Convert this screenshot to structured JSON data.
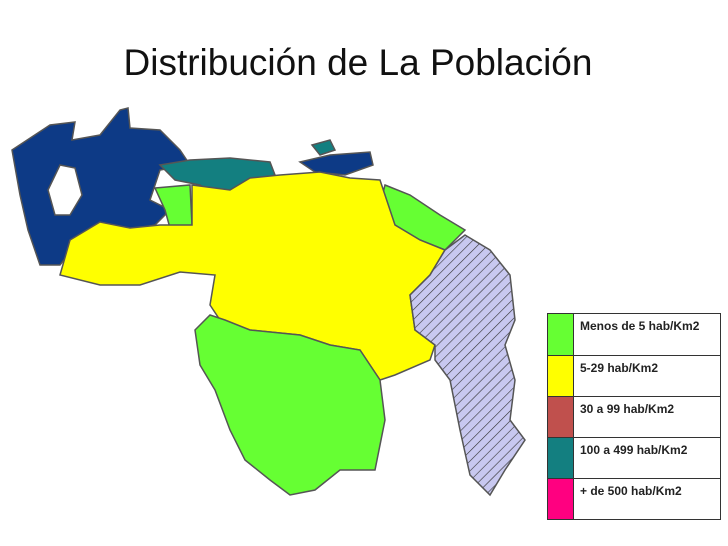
{
  "header": {
    "title": "Distribución de La Población"
  },
  "legend": {
    "items": [
      {
        "label": "Menos de 5 hab/Km2",
        "color": "#66ff33"
      },
      {
        "label": "5-29 hab/Km2",
        "color": "#ffff00"
      },
      {
        "label": "30 a 99 hab/Km2",
        "color": "#c0504d"
      },
      {
        "label": "100 a 499 hab/Km2",
        "color": "#137f80"
      },
      {
        "label": "+ de 500 hab/Km2",
        "color": "#ff0080"
      }
    ]
  }
}
